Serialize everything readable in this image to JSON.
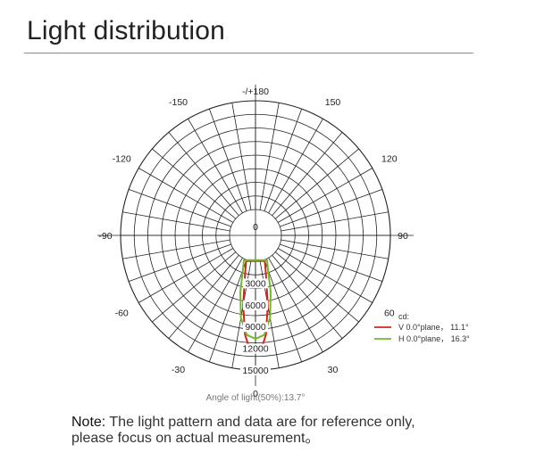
{
  "page": {
    "title": "Light distribution",
    "note_label": "Note:",
    "note_text_line1": " The light pattern and data are for reference only,",
    "note_text_line2": "please focus on actual measurement。"
  },
  "chart_data": {
    "type": "polar",
    "angle_labels": [
      "-/+180",
      "150",
      "120",
      "90",
      "60",
      "30",
      "0",
      "-30",
      "-60",
      "-90",
      "-120",
      "-150"
    ],
    "radial_labels": [
      "0",
      "3000",
      "6000",
      "9000",
      "12000",
      "15000"
    ],
    "rmax": 15000,
    "legend_title": "cd:",
    "legend_position": "right",
    "caption": "Angle of light(50%):13.7°",
    "series": [
      {
        "name": "V 0.0°plane， 11.1°",
        "color": "#d9231b",
        "points": [
          [
            -20,
            200
          ],
          [
            -15,
            2000
          ],
          [
            -10,
            6200
          ],
          [
            -6,
            10200
          ],
          [
            -3,
            12100
          ],
          [
            0,
            12500
          ],
          [
            3,
            12100
          ],
          [
            6,
            10200
          ],
          [
            10,
            6200
          ],
          [
            15,
            2000
          ],
          [
            20,
            200
          ]
        ]
      },
      {
        "name": "H 0.0°plane， 16.3°",
        "color": "#6dbb2d",
        "points": [
          [
            -25,
            200
          ],
          [
            -20,
            1500
          ],
          [
            -15,
            4500
          ],
          [
            -10,
            8000
          ],
          [
            -5,
            10200
          ],
          [
            0,
            10700
          ],
          [
            5,
            10200
          ],
          [
            10,
            8000
          ],
          [
            15,
            4500
          ],
          [
            20,
            1500
          ],
          [
            25,
            200
          ]
        ]
      }
    ]
  }
}
